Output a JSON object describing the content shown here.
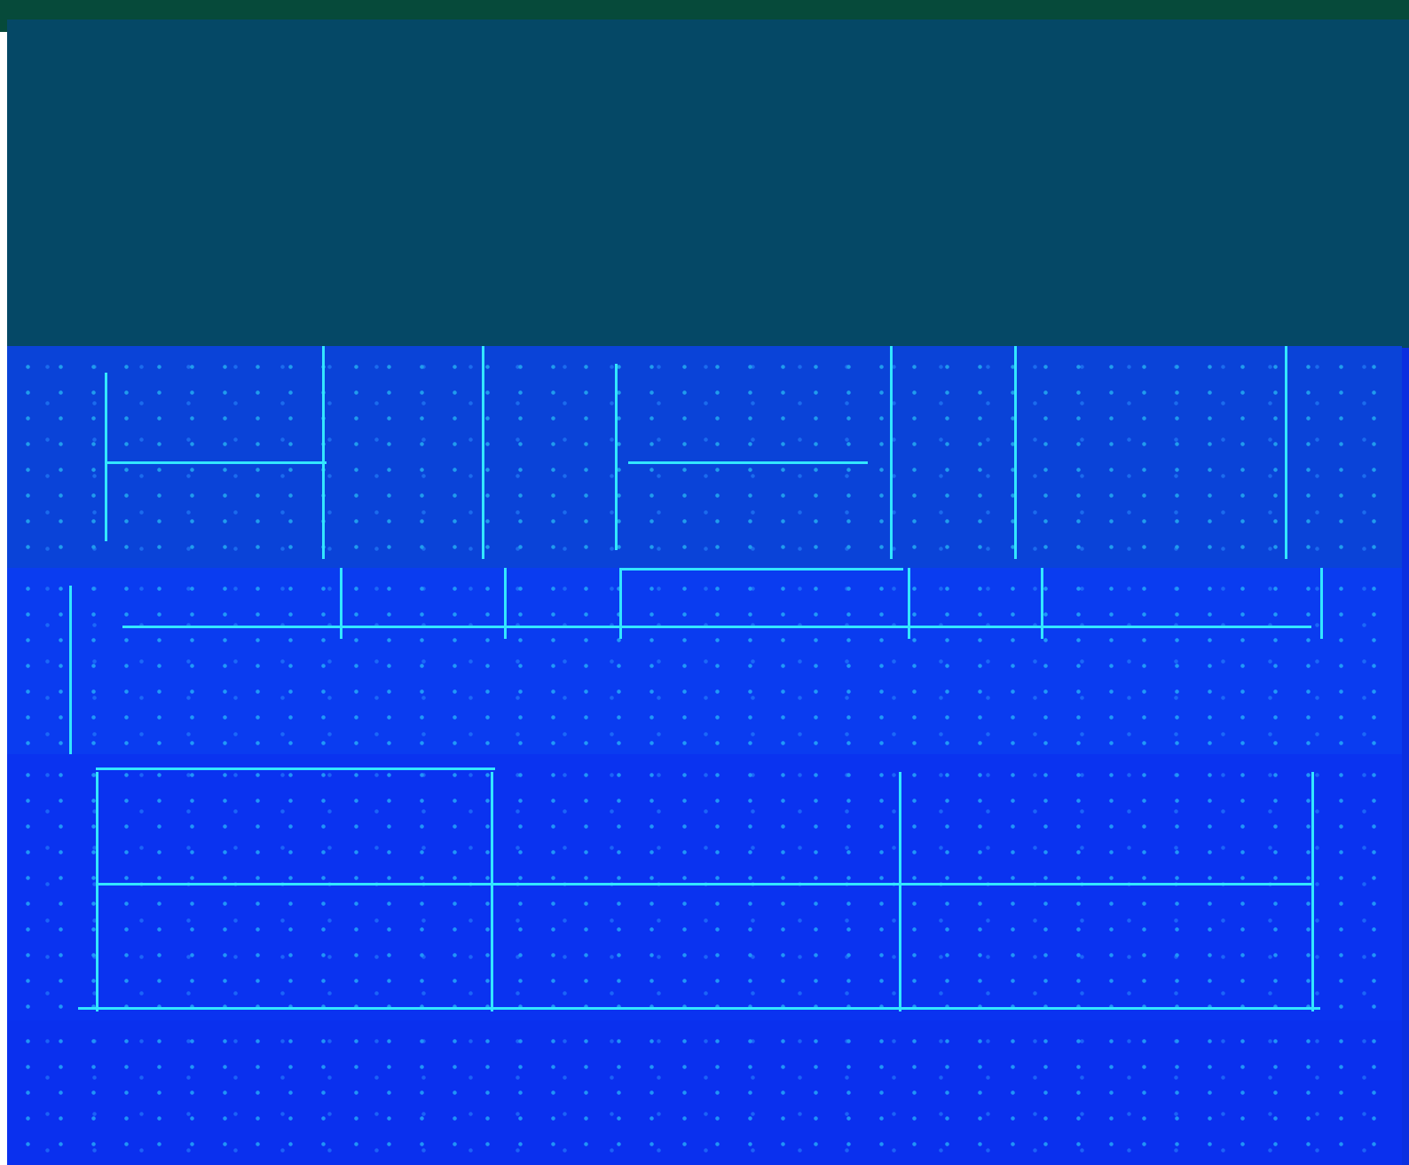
{
  "screen": {
    "colors": {
      "header": "#064a3a",
      "banner": "#054866",
      "background": "#0a2fe0",
      "line": "#33e6ff"
    }
  },
  "table": {
    "row1": [
      "",
      "",
      "",
      "",
      "",
      ""
    ],
    "row2": [
      "",
      "",
      "",
      "",
      "",
      ""
    ],
    "row3": [
      "",
      "",
      ""
    ],
    "center_text": ""
  }
}
